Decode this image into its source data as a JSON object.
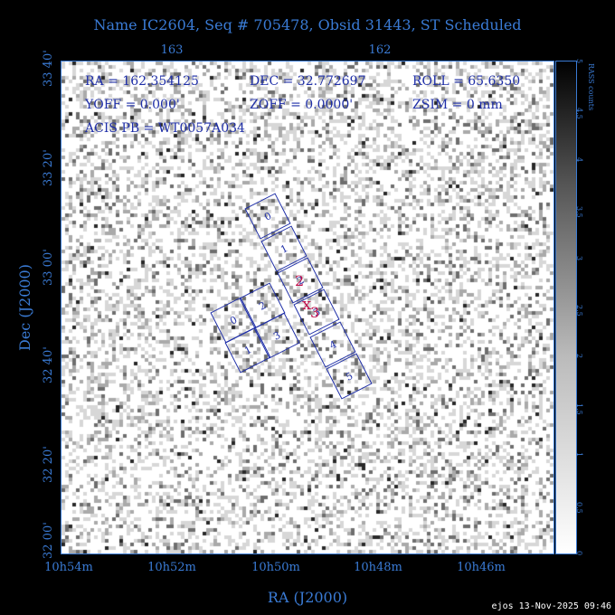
{
  "title": "Name IC2604, Seq # 705478, Obsid 31443, ST Scheduled",
  "axes": {
    "xlabel": "RA (J2000)",
    "ylabel": "Dec (J2000)",
    "top_ticks": [
      "163",
      "162"
    ],
    "bottom_ticks": [
      "10h54m",
      "10h52m",
      "10h50m",
      "10h48m",
      "10h46m"
    ],
    "left_ticks": [
      "33 40'",
      "33 20'",
      "33 00'",
      "32 40'",
      "32 20'",
      "32 00'"
    ]
  },
  "info": {
    "ra": "RA = 162.354125",
    "dec": "DEC = 32.772697",
    "roll": "ROLL = 65.6350",
    "yoff": "YOFF = 0.000'",
    "zoff": "ZOFF = 0.0000'",
    "zsim": "ZSIM = 0 mm",
    "acis": "ACIS PB = WT0057A034"
  },
  "chips": [
    "0",
    "1",
    "2",
    "3",
    "4",
    "5",
    "0",
    "2",
    "1",
    "3"
  ],
  "markers": {
    "i_label": "2",
    "s_label": "3",
    "aimpoint": "x"
  },
  "colorbar": {
    "label": "RASS counts",
    "ticks": [
      "0",
      "0.5",
      "1",
      "1.5",
      "2",
      "2.5",
      "3",
      "3.5",
      "4",
      "4.5",
      "5"
    ]
  },
  "footer": "ejos 13-Nov-2025 09:46",
  "colors": {
    "axis": "#3a7bd5",
    "chips": "#1f2fa8",
    "marker": "#c0104a"
  }
}
